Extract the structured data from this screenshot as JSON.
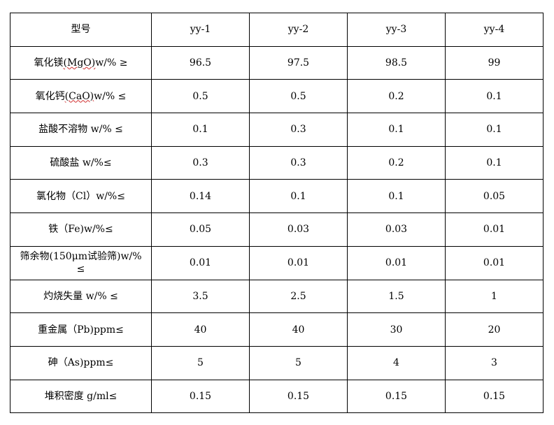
{
  "table": {
    "header": [
      "型号",
      "yy-1",
      "yy-2",
      "yy-3",
      "yy-4"
    ],
    "rows": [
      {
        "label": "氧化镁(MgO)w/% ≥",
        "values": [
          "96.5",
          "97.5",
          "98.5",
          "99"
        ]
      },
      {
        "label": "氧化钙(CaO)w/% ≤",
        "values": [
          "0.5",
          "0.5",
          "0.2",
          "0.1"
        ]
      },
      {
        "label": "盐酸不溶物 w/% ≤",
        "values": [
          "0.1",
          "0.3",
          "0.1",
          "0.1"
        ]
      },
      {
        "label": "硫酸盐 w/%≤",
        "values": [
          "0.3",
          "0.3",
          "0.2",
          "0.1"
        ]
      },
      {
        "label": "氯化物（Cl）w/%≤",
        "values": [
          "0.14",
          "0.1",
          "0.1",
          "0.05"
        ]
      },
      {
        "label": "铁（Fe)w/%≤",
        "values": [
          "0.05",
          "0.03",
          "0.03",
          "0.01"
        ]
      },
      {
        "label": "筛余物(150μm试验筛)w/% ≤",
        "values": [
          "0.01",
          "0.01",
          "0.01",
          "0.01"
        ]
      },
      {
        "label": "灼烧失量 w/% ≤",
        "values": [
          "3.5",
          "2.5",
          "1.5",
          "1"
        ]
      },
      {
        "label": "重金属（Pb)ppm≤",
        "values": [
          "40",
          "40",
          "30",
          "20"
        ]
      },
      {
        "label": "砷（As)ppm≤",
        "values": [
          "5",
          "5",
          "4",
          "3"
        ]
      },
      {
        "label": "堆积密度 g/ml≤",
        "values": [
          "0.15",
          "0.15",
          "0.15",
          "0.15"
        ]
      }
    ]
  }
}
